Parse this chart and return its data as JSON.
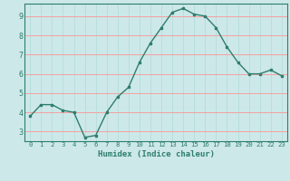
{
  "x": [
    0,
    1,
    2,
    3,
    4,
    5,
    6,
    7,
    8,
    9,
    10,
    11,
    12,
    13,
    14,
    15,
    16,
    17,
    18,
    19,
    20,
    21,
    22,
    23
  ],
  "y": [
    3.8,
    4.4,
    4.4,
    4.1,
    4.0,
    2.7,
    2.8,
    4.0,
    4.8,
    5.3,
    6.6,
    7.6,
    8.4,
    9.2,
    9.4,
    9.1,
    9.0,
    8.4,
    7.4,
    6.6,
    6.0,
    6.0,
    6.2,
    5.9
  ],
  "xlabel": "Humidex (Indice chaleur)",
  "bg_color": "#cde8e8",
  "line_color": "#2e7d6e",
  "grid_color_h": "#f5a0a0",
  "grid_color_v": "#b8dede",
  "xlim": [
    -0.5,
    23.5
  ],
  "ylim": [
    2.5,
    9.65
  ],
  "yticks": [
    3,
    4,
    5,
    6,
    7,
    8,
    9
  ],
  "xticks": [
    0,
    1,
    2,
    3,
    4,
    5,
    6,
    7,
    8,
    9,
    10,
    11,
    12,
    13,
    14,
    15,
    16,
    17,
    18,
    19,
    20,
    21,
    22,
    23
  ]
}
